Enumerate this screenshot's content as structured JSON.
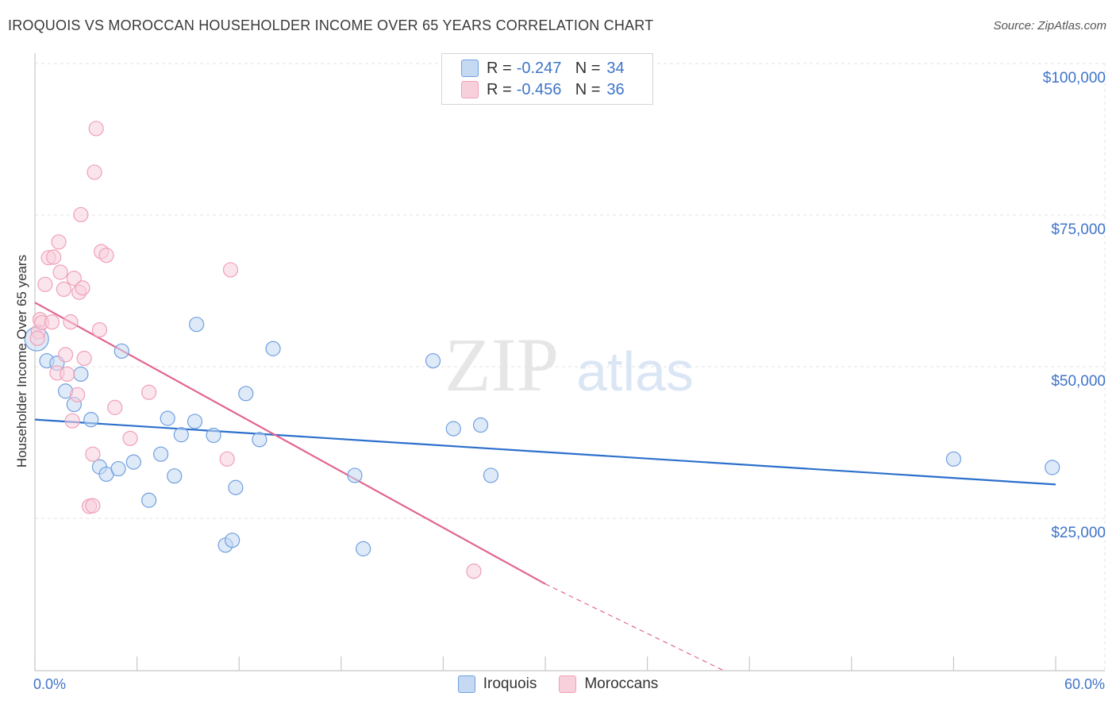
{
  "title": "IROQUOIS VS MOROCCAN HOUSEHOLDER INCOME OVER 65 YEARS CORRELATION CHART",
  "source": "Source: ZipAtlas.com",
  "watermark": {
    "zip": "ZIP",
    "atlas": "atlas"
  },
  "legend": {
    "rows": [
      {
        "r_label": "R =",
        "r_value": "-0.247",
        "n_label": "N =",
        "n_value": "34",
        "color": "#6f9fe0"
      },
      {
        "r_label": "R =",
        "r_value": "-0.456",
        "n_label": "N =",
        "n_value": "36",
        "color": "#f0a0b8"
      }
    ]
  },
  "bottom_legend": {
    "iroquois": "Iroquois",
    "moroccans": "Moroccans"
  },
  "axes": {
    "ylabel": "Householder Income Over 65 years",
    "xmin_label": "0.0%",
    "xmax_label": "60.0%",
    "yticks": [
      "$25,000",
      "$50,000",
      "$75,000",
      "$100,000"
    ]
  },
  "chart_data": {
    "type": "scatter",
    "xlim": [
      0,
      60
    ],
    "ylim": [
      0,
      104000
    ],
    "x_unit": "%",
    "grid": true,
    "ytick_values": [
      25000,
      50000,
      75000,
      100000
    ],
    "series": [
      {
        "name": "Iroquois",
        "color": "#6f9fe0",
        "fill": "#c5d9f3",
        "trend": {
          "x0": 0,
          "y0": 43500,
          "x1": 60,
          "y1": 32800,
          "dashed_to": null
        },
        "points": [
          [
            0.1,
            56800
          ],
          [
            0.7,
            53200
          ],
          [
            1.3,
            52800
          ],
          [
            1.8,
            48200
          ],
          [
            2.3,
            46000
          ],
          [
            2.7,
            51000
          ],
          [
            3.3,
            43500
          ],
          [
            3.8,
            35700
          ],
          [
            4.2,
            34500
          ],
          [
            4.9,
            35400
          ],
          [
            5.1,
            54800
          ],
          [
            5.8,
            36500
          ],
          [
            6.7,
            30200
          ],
          [
            7.4,
            37800
          ],
          [
            7.8,
            43700
          ],
          [
            8.2,
            34200
          ],
          [
            8.6,
            41000
          ],
          [
            9.4,
            43200
          ],
          [
            9.5,
            59200
          ],
          [
            10.5,
            40900
          ],
          [
            11.2,
            22800
          ],
          [
            11.6,
            23600
          ],
          [
            11.8,
            32300
          ],
          [
            12.4,
            47800
          ],
          [
            13.2,
            40200
          ],
          [
            14.0,
            55200
          ],
          [
            18.8,
            34300
          ],
          [
            19.3,
            22200
          ],
          [
            23.4,
            53200
          ],
          [
            24.6,
            42000
          ],
          [
            26.2,
            42600
          ],
          [
            26.8,
            34300
          ],
          [
            54.0,
            37000
          ],
          [
            59.8,
            35600
          ]
        ]
      },
      {
        "name": "Moroccans",
        "color": "#f0a0b8",
        "fill": "#f8d0dc",
        "trend": {
          "x0": 0,
          "y0": 62800,
          "x1": 30,
          "y1": 16400,
          "dashed_to": [
            40.5,
            0
          ]
        },
        "points": [
          [
            0.2,
            58000
          ],
          [
            0.3,
            60000
          ],
          [
            0.4,
            59500
          ],
          [
            0.6,
            65800
          ],
          [
            0.8,
            70200
          ],
          [
            1.0,
            59600
          ],
          [
            1.1,
            70300
          ],
          [
            1.3,
            51200
          ],
          [
            1.4,
            72800
          ],
          [
            1.5,
            67800
          ],
          [
            1.7,
            65000
          ],
          [
            1.8,
            54200
          ],
          [
            1.9,
            51000
          ],
          [
            2.1,
            59600
          ],
          [
            2.2,
            43300
          ],
          [
            2.3,
            66800
          ],
          [
            2.5,
            47600
          ],
          [
            2.6,
            64500
          ],
          [
            2.7,
            77300
          ],
          [
            2.8,
            65200
          ],
          [
            2.9,
            53600
          ],
          [
            3.2,
            29200
          ],
          [
            3.4,
            29300
          ],
          [
            3.4,
            37800
          ],
          [
            3.5,
            84300
          ],
          [
            3.6,
            91500
          ],
          [
            3.8,
            58300
          ],
          [
            3.9,
            71200
          ],
          [
            4.2,
            70600
          ],
          [
            4.7,
            45500
          ],
          [
            5.6,
            40400
          ],
          [
            6.7,
            48000
          ],
          [
            11.3,
            37000
          ],
          [
            11.5,
            68200
          ],
          [
            25.8,
            18500
          ],
          [
            0.15,
            56900
          ]
        ]
      }
    ]
  }
}
